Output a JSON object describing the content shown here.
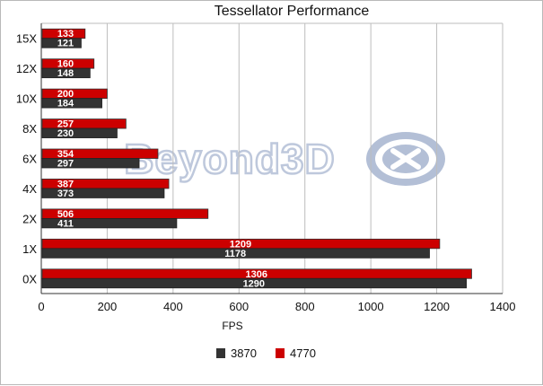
{
  "chart_data": {
    "type": "bar",
    "orientation": "horizontal",
    "title": "Tessellator Performance",
    "xlabel": "FPS",
    "ylabel": "",
    "categories": [
      "15X",
      "12X",
      "10X",
      "8X",
      "6X",
      "4X",
      "2X",
      "1X",
      "0X"
    ],
    "series": [
      {
        "name": "4770",
        "color": "#cc0000",
        "values": [
          133,
          160,
          200,
          257,
          354,
          387,
          506,
          1209,
          1306
        ]
      },
      {
        "name": "3870",
        "color": "#333333",
        "values": [
          121,
          148,
          184,
          230,
          297,
          373,
          411,
          1178,
          1290
        ]
      }
    ],
    "xlim": [
      0,
      1400
    ],
    "xticks": [
      0,
      200,
      400,
      600,
      800,
      1000,
      1200,
      1400
    ],
    "grid": true,
    "legend_position": "bottom",
    "legend_order": [
      "3870",
      "4770"
    ]
  },
  "watermark": {
    "text": "Beyond3D",
    "icon": "beyond3d-logo-icon"
  }
}
